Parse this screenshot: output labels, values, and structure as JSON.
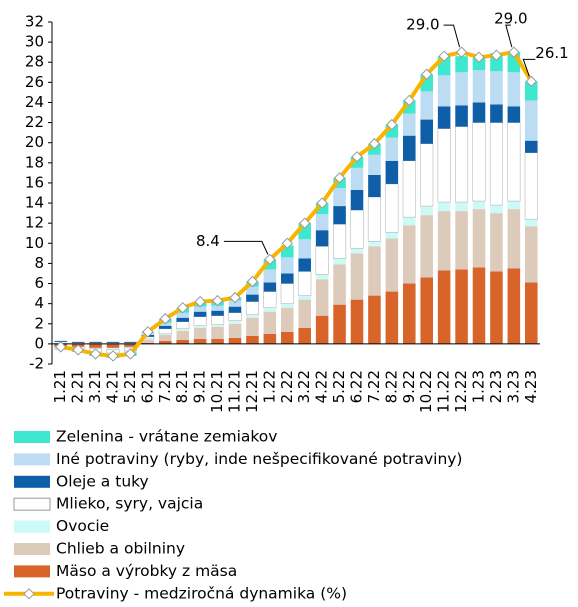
{
  "chart_data": {
    "type": "stacked_bar_line",
    "categories": [
      "1.21",
      "2.21",
      "3.21",
      "4.21",
      "5.21",
      "6.21",
      "7.21",
      "8.21",
      "9.21",
      "10.21",
      "11.21",
      "12.21",
      "1.22",
      "2.22",
      "3.22",
      "4.22",
      "5.22",
      "6.22",
      "7.22",
      "8.22",
      "9.22",
      "10.22",
      "11.22",
      "12.22",
      "1.23",
      "2.23",
      "3.23",
      "4.23"
    ],
    "series": [
      {
        "name": "Mäso a výrobky z mäsa",
        "color": "#d9642a",
        "values": [
          -0.3,
          -0.3,
          -0.4,
          -0.4,
          -0.3,
          0.1,
          0.3,
          0.4,
          0.5,
          0.5,
          0.6,
          0.8,
          1.0,
          1.2,
          1.6,
          2.8,
          3.9,
          4.4,
          4.8,
          5.2,
          6.0,
          6.6,
          7.3,
          7.4,
          7.6,
          7.2,
          7.5,
          6.1
        ]
      },
      {
        "name": "Chlieb a obilniny",
        "color": "#dccbbb",
        "values": [
          0.1,
          0.1,
          0.1,
          0.1,
          0.1,
          0.3,
          0.6,
          0.9,
          1.1,
          1.2,
          1.4,
          1.8,
          2.2,
          2.4,
          2.8,
          3.6,
          4.0,
          4.6,
          4.9,
          5.3,
          5.8,
          6.2,
          5.9,
          5.8,
          5.8,
          5.8,
          5.9,
          5.6
        ]
      },
      {
        "name": "Ovocie",
        "color": "#ccfaf6",
        "values": [
          0.1,
          0.0,
          -0.1,
          -0.2,
          -0.1,
          0.1,
          0.1,
          0.2,
          0.2,
          0.2,
          0.3,
          0.3,
          0.4,
          0.4,
          0.4,
          0.5,
          0.6,
          0.5,
          0.5,
          0.6,
          0.8,
          0.9,
          0.9,
          0.9,
          0.8,
          0.8,
          0.8,
          0.7
        ]
      },
      {
        "name": "Mlieko, syry, vajcia",
        "color": "#ffffff",
        "values": [
          -0.2,
          -0.2,
          -0.3,
          -0.3,
          -0.3,
          0.2,
          0.5,
          0.7,
          0.9,
          0.9,
          0.8,
          1.3,
          1.6,
          2.0,
          2.4,
          2.8,
          3.4,
          3.8,
          4.4,
          4.8,
          5.6,
          6.2,
          7.3,
          7.5,
          7.8,
          8.2,
          7.8,
          6.6
        ]
      },
      {
        "name": "Oleje a tuky",
        "color": "#0e5ea8",
        "values": [
          0.1,
          0.1,
          0.1,
          0.1,
          0.1,
          0.2,
          0.3,
          0.4,
          0.5,
          0.5,
          0.6,
          0.7,
          0.9,
          1.0,
          1.3,
          1.6,
          1.8,
          2.0,
          2.2,
          2.3,
          2.5,
          2.4,
          2.2,
          2.1,
          2.0,
          1.8,
          1.6,
          1.2
        ]
      },
      {
        "name": "Iné potraviny (ryby, inde nešpecifikované potraviny)",
        "color": "#bcdcf4",
        "values": [
          -0.1,
          -0.1,
          -0.2,
          -0.2,
          -0.2,
          0.2,
          0.3,
          0.5,
          0.5,
          0.5,
          0.6,
          0.8,
          1.3,
          1.6,
          1.9,
          1.6,
          1.8,
          2.2,
          2.0,
          2.3,
          2.2,
          2.8,
          3.1,
          3.3,
          3.2,
          3.3,
          3.4,
          4.0
        ]
      },
      {
        "name": "Zelenina - vrátane zemiakov",
        "color": "#3ee8cf",
        "values": [
          0.0,
          -0.2,
          -0.2,
          -0.3,
          -0.3,
          0.1,
          0.4,
          0.5,
          0.5,
          0.5,
          0.3,
          0.5,
          1.0,
          1.2,
          1.6,
          1.1,
          1.0,
          1.1,
          1.1,
          1.3,
          1.3,
          1.7,
          1.9,
          1.6,
          1.3,
          1.8,
          2.0,
          1.9
        ]
      }
    ],
    "line": {
      "name": "Potraviny - medziročná dynamika (%)",
      "color": "#f7b500",
      "values": [
        -0.3,
        -0.6,
        -1.0,
        -1.2,
        -1.0,
        1.2,
        2.5,
        3.6,
        4.2,
        4.3,
        4.6,
        6.2,
        8.4,
        10.0,
        12.0,
        14.0,
        16.5,
        18.6,
        19.9,
        21.8,
        24.2,
        26.8,
        28.6,
        29.0,
        28.5,
        28.7,
        29.0,
        26.1
      ],
      "value_labels": [
        null,
        null,
        null,
        null,
        null,
        null,
        null,
        null,
        null,
        null,
        null,
        null,
        "8.4",
        null,
        null,
        null,
        null,
        null,
        null,
        null,
        null,
        null,
        null,
        "29.0",
        null,
        null,
        "29.0",
        "26.1"
      ]
    },
    "ylim": [
      -2,
      32
    ],
    "yticks": [
      -2,
      0,
      2,
      4,
      6,
      8,
      10,
      12,
      14,
      16,
      18,
      20,
      22,
      24,
      26,
      28,
      30,
      32
    ]
  }
}
